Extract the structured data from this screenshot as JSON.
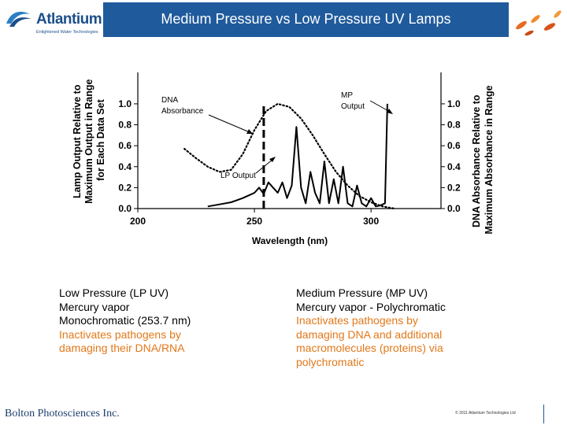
{
  "header": {
    "logo_text": "Atlantium",
    "logo_tagline": "Enlightened Water Technologies",
    "title": "Medium Pressure vs Low Pressure UV Lamps"
  },
  "colors": {
    "title_bg": "#1f5a9c",
    "logo_blue": "#1c4f8a",
    "accent_orange": "#e2781a"
  },
  "chart_data": {
    "type": "line",
    "title": "",
    "xlabel": "Wavelength (nm)",
    "ylabel_left": "Lamp Output Relative to Maximum Output in Range for Each Data Set",
    "ylabel_right": "DNA Absorbance Relative to Maximum Absorbance in Range",
    "x_ticks": [
      "200",
      "250",
      "300"
    ],
    "y_ticks_left": [
      "0.0",
      "0.2",
      "0.4",
      "0.6",
      "0.8",
      "1.0"
    ],
    "y_ticks_right": [
      "0.0",
      "0.2",
      "0.4",
      "0.6",
      "0.8",
      "1.0"
    ],
    "xlim": [
      200,
      330
    ],
    "ylim": [
      0,
      1.3
    ],
    "annotations": {
      "dna": [
        "DNA",
        "Absorbance"
      ],
      "mp": [
        "MP",
        "Output"
      ],
      "lp": "LP Output"
    },
    "series": [
      {
        "name": "DNA Absorbance",
        "style": "dotted",
        "x": [
          220,
          225,
          230,
          235,
          240,
          245,
          250,
          255,
          260,
          265,
          270,
          275,
          280,
          285,
          290,
          295,
          300,
          305,
          310
        ],
        "y": [
          0.57,
          0.48,
          0.4,
          0.35,
          0.37,
          0.52,
          0.75,
          0.93,
          1.0,
          0.97,
          0.86,
          0.7,
          0.52,
          0.35,
          0.22,
          0.12,
          0.06,
          0.02,
          0.0
        ]
      },
      {
        "name": "LP Output",
        "style": "dashed",
        "x": [
          254,
          254
        ],
        "y": [
          0,
          1.0
        ]
      },
      {
        "name": "MP Output",
        "style": "solid",
        "x": [
          230,
          235,
          240,
          245,
          248,
          250,
          252,
          254,
          256,
          258,
          260,
          262,
          264,
          266,
          268,
          270,
          272,
          274,
          276,
          278,
          280,
          282,
          284,
          286,
          288,
          290,
          292,
          294,
          296,
          298,
          300,
          302,
          304,
          306,
          307
        ],
        "y": [
          0.02,
          0.04,
          0.06,
          0.1,
          0.13,
          0.15,
          0.2,
          0.14,
          0.25,
          0.2,
          0.15,
          0.25,
          0.1,
          0.22,
          0.78,
          0.2,
          0.05,
          0.35,
          0.15,
          0.05,
          0.45,
          0.05,
          0.28,
          0.05,
          0.4,
          0.05,
          0.02,
          0.22,
          0.05,
          0.02,
          0.1,
          0.02,
          0.03,
          0.05,
          1.0
        ]
      }
    ]
  },
  "left_block": {
    "lines": [
      "Low Pressure (LP UV)",
      "Mercury vapor",
      "Monochromatic (253.7 nm)",
      "Inactivates pathogens by",
      "damaging their DNA/RNA"
    ]
  },
  "right_block": {
    "lines": [
      "Medium Pressure (MP UV)",
      "Mercury vapor - Polychromatic",
      "Inactivates pathogens by",
      "damaging DNA and additional",
      "macromolecules (proteins) via",
      "polychromatic"
    ]
  },
  "footer": {
    "left": "Bolton Photosciences Inc.",
    "right": "© 2011 Atlantium Technologies Ltd"
  }
}
